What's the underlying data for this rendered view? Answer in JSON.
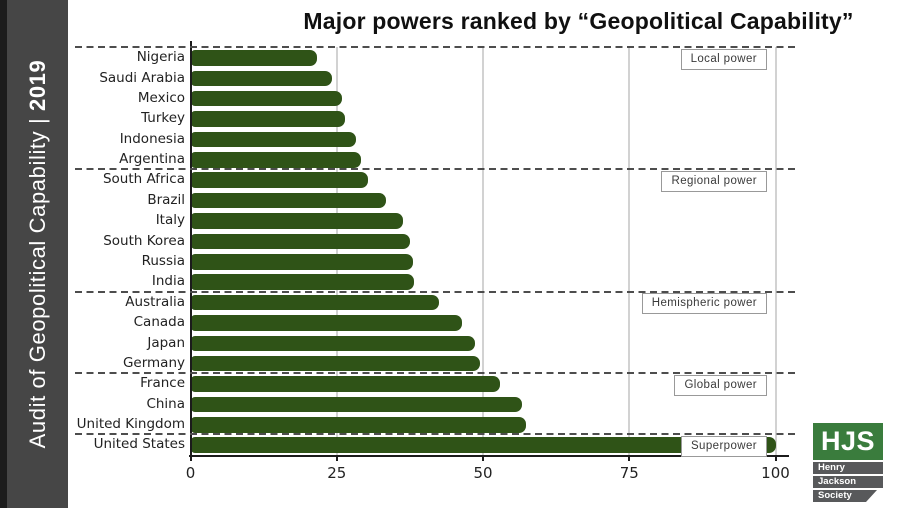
{
  "sidebar": {
    "title_prefix": "Audit of Geopolitical Capability | ",
    "title_year": "2019",
    "bg_color": "#464646",
    "edge_color": "#1C1C1C"
  },
  "header": {
    "title": "Major powers ranked by “Geopolitical Capability”"
  },
  "chart_data": {
    "type": "bar",
    "orientation": "horizontal",
    "title": "Major powers ranked by “Geopolitical Capability”",
    "categories": [
      "Nigeria",
      "Saudi Arabia",
      "Mexico",
      "Turkey",
      "Indonesia",
      "Argentina",
      "South Africa",
      "Brazil",
      "Italy",
      "South Korea",
      "Russia",
      "India",
      "Australia",
      "Canada",
      "Japan",
      "Germany",
      "France",
      "China",
      "United Kingdom",
      "United States"
    ],
    "values": [
      21.6,
      24.1,
      25.8,
      26.3,
      28.2,
      29.0,
      30.2,
      33.3,
      36.2,
      37.4,
      37.9,
      38.1,
      42.4,
      46.4,
      48.6,
      49.4,
      52.8,
      56.5,
      57.2,
      100
    ],
    "xlim": [
      0,
      100
    ],
    "x_tick_labels": [
      "0",
      "25",
      "50",
      "75",
      "100"
    ],
    "x_tick_values": [
      0,
      25,
      50,
      75,
      100
    ],
    "grid": "vertical",
    "bar_color": "#2F5317",
    "groups": [
      {
        "label": "Local power",
        "start_row": 0,
        "end_row": 5
      },
      {
        "label": "Regional power",
        "start_row": 6,
        "end_row": 11
      },
      {
        "label": "Hemispheric power",
        "start_row": 12,
        "end_row": 15
      },
      {
        "label": "Global power",
        "start_row": 16,
        "end_row": 18
      },
      {
        "label": "Superpower",
        "start_row": 19,
        "end_row": 19
      }
    ]
  },
  "logo": {
    "abbr": "HJS",
    "lines": [
      "Henry",
      "Jackson",
      "Society"
    ],
    "green": "#3A7C3D",
    "gray": "#58595B"
  }
}
